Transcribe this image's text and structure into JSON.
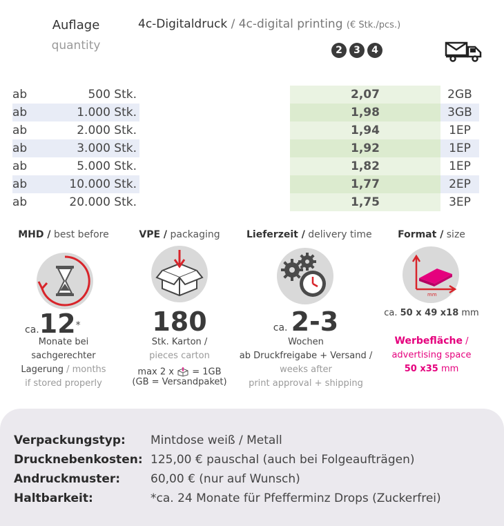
{
  "header": {
    "auflage": "Auflage",
    "quantity": "quantity",
    "print_de": "4c-Digitaldruck",
    "sep": " / ",
    "print_en": "4c-digital printing",
    "unit": "(€ Stk./pcs.)",
    "circles": [
      "2",
      "3",
      "4"
    ],
    "truck_icon": "truck-icon"
  },
  "rows": [
    {
      "ab": "ab",
      "qty": "500 Stk.",
      "price": "2,07",
      "ship": "2GB"
    },
    {
      "ab": "ab",
      "qty": "1.000 Stk.",
      "price": "1,98",
      "ship": "3GB"
    },
    {
      "ab": "ab",
      "qty": "2.000 Stk.",
      "price": "1,94",
      "ship": "1EP"
    },
    {
      "ab": "ab",
      "qty": "3.000 Stk.",
      "price": "1,92",
      "ship": "1EP"
    },
    {
      "ab": "ab",
      "qty": "5.000 Stk.",
      "price": "1,82",
      "ship": "1EP"
    },
    {
      "ab": "ab",
      "qty": "10.000 Stk.",
      "price": "1,77",
      "ship": "2EP"
    },
    {
      "ab": "ab",
      "qty": "20.000 Stk.",
      "price": "1,75",
      "ship": "3EP"
    }
  ],
  "colors": {
    "band_blue": "#e8ecf6",
    "green_light": "#eaf3e2",
    "green_dark": "#dcebcf",
    "pink": "#e5007d"
  },
  "mhd": {
    "title_b": "MHD /",
    "title": " best before",
    "ca": "ca.",
    "value": "12",
    "star": "*",
    "line1": "Monate bei",
    "line2": "sachgerechter",
    "line3a": "Lagerung",
    "line3b": " / months",
    "line4": "if stored properly"
  },
  "vpe": {
    "title_b": "VPE /",
    "title": " packaging",
    "value": "180",
    "line1": "Stk. Karton /",
    "line2": "pieces carton",
    "line3a": "max 2 x",
    "line3b": "= 1GB",
    "line4": "(GB = Versandpaket)"
  },
  "delivery": {
    "title_b": "Lieferzeit /",
    "title": " delivery time",
    "ca": "ca.",
    "value": "2-3",
    "line1": "Wochen",
    "line2": "ab Druckfreigabe + Versand /",
    "line3": "weeks after",
    "line4": "print approval + shipping"
  },
  "format": {
    "title_b": "Format /",
    "title": " size",
    "ca": "ca.",
    "size": "50 x 49 x18",
    "unit": " mm",
    "icon_label": "mm",
    "adv_b": "Werbefläche",
    "adv_sep": " /",
    "adv_en": "advertising space",
    "adv_size": "50 x35",
    "adv_unit": " mm"
  },
  "specs": [
    {
      "k": "Verpackungstyp:",
      "v": "Mintdose weiß / Metall"
    },
    {
      "k": "Drucknebenkosten:",
      "v": "125,00 € pauschal (auch bei Folgeaufträgen)"
    },
    {
      "k": "Andruckmuster:",
      "v": "60,00 € (nur auf Wunsch)"
    },
    {
      "k": "Haltbarkeit:",
      "v": "*ca. 24 Monate für Pfefferminz Drops (Zuckerfrei)"
    }
  ]
}
